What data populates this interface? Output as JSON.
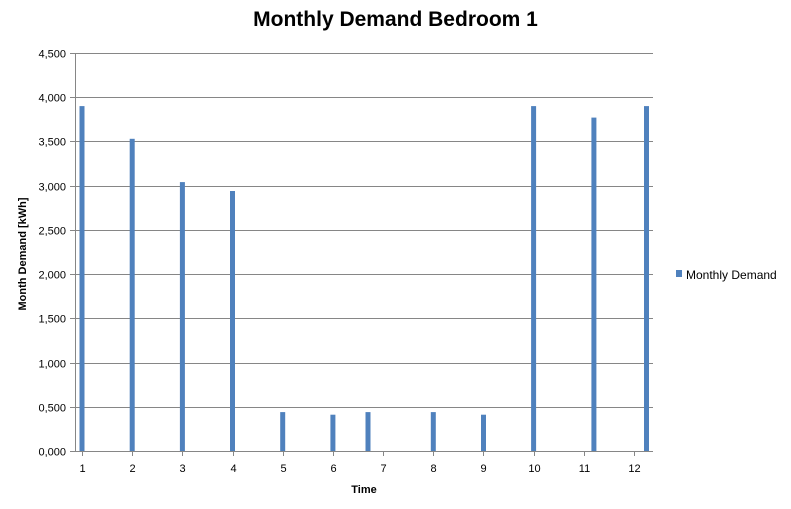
{
  "chart_data": {
    "type": "bar",
    "title": "Monthly Demand Bedroom 1",
    "xlabel": "Time",
    "ylabel": "Month Demand [kWh]",
    "ylim": [
      0,
      4500
    ],
    "yticks": [
      "0,000",
      "0,500",
      "1,000",
      "1,500",
      "2,000",
      "2,500",
      "3,000",
      "3,500",
      "4,000",
      "4,500"
    ],
    "yticks_values": [
      0,
      500,
      1000,
      1500,
      2000,
      2500,
      3000,
      3500,
      4000,
      4500
    ],
    "x_tick_labels": [
      "1",
      "2",
      "3",
      "4",
      "5",
      "6",
      "7",
      "8",
      "9",
      "10",
      "11",
      "12"
    ],
    "x_tick_values": [
      1,
      2,
      3,
      4,
      5,
      6,
      7,
      8,
      9,
      10,
      11,
      12
    ],
    "xlim": [
      1,
      12
    ],
    "series": [
      {
        "name": "Monthly Demand",
        "color": "#4f81bd",
        "points": [
          {
            "x": 1,
            "y": 3900
          },
          {
            "x": 2,
            "y": 3530
          },
          {
            "x": 3,
            "y": 3040
          },
          {
            "x": 4,
            "y": 2940
          },
          {
            "x": 5,
            "y": 440
          },
          {
            "x": 6,
            "y": 410
          },
          {
            "x": 6.7,
            "y": 440
          },
          {
            "x": 8,
            "y": 440
          },
          {
            "x": 9,
            "y": 410
          },
          {
            "x": 10,
            "y": 3900
          },
          {
            "x": 11.2,
            "y": 3770
          },
          {
            "x": 12.25,
            "y": 3900
          }
        ]
      }
    ],
    "grid": true,
    "legend": "right"
  }
}
